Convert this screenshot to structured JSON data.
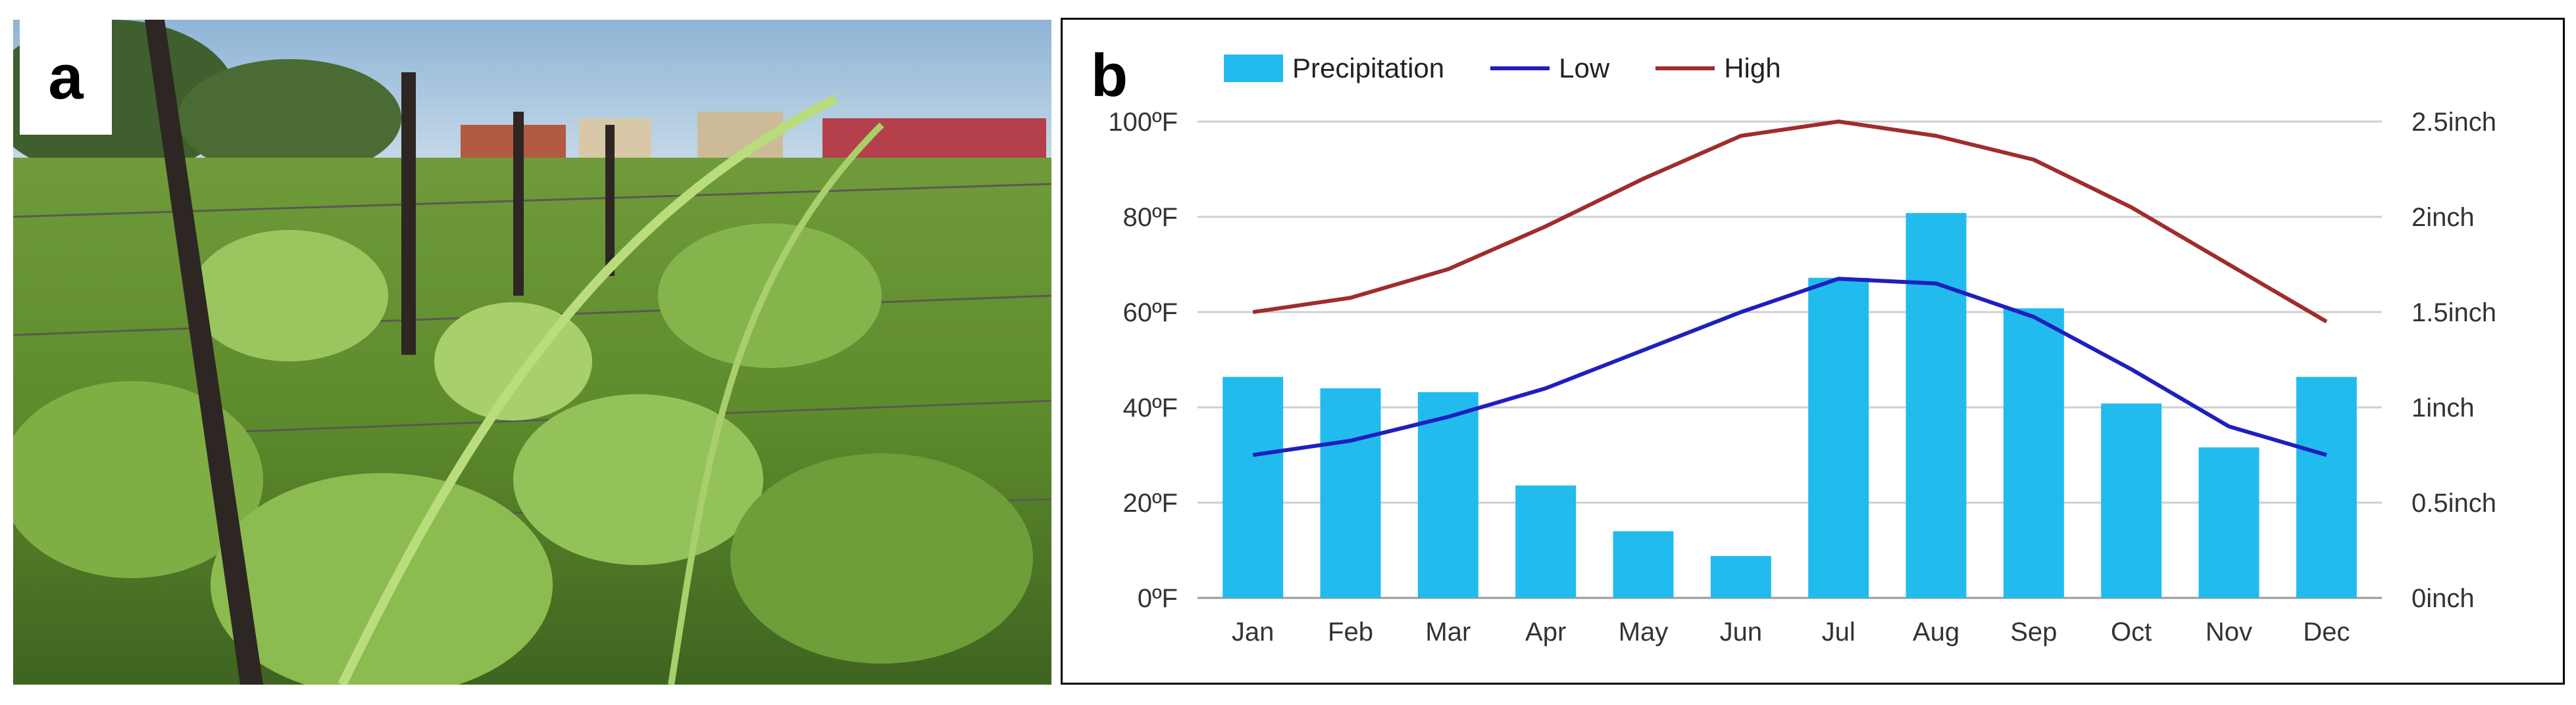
{
  "panel_labels": {
    "a": "a",
    "b": "b"
  },
  "photo": {
    "subject": "vineyard-photo"
  },
  "chart_data": {
    "type": "bar",
    "categories": [
      "Jan",
      "Feb",
      "Mar",
      "Apr",
      "May",
      "Jun",
      "Jul",
      "Aug",
      "Sep",
      "Oct",
      "Nov",
      "Dec"
    ],
    "series": [
      {
        "name": "Precipitation",
        "type": "bar",
        "axis": "right",
        "color": "#22bbee",
        "values": [
          1.16,
          1.1,
          1.08,
          0.59,
          0.35,
          0.22,
          1.68,
          2.02,
          1.52,
          1.02,
          0.79,
          1.16
        ]
      },
      {
        "name": "Low",
        "type": "line",
        "axis": "left",
        "color": "#1f1fbf",
        "values": [
          30,
          33,
          38,
          44,
          52,
          60,
          67,
          66,
          59,
          48,
          36,
          30
        ]
      },
      {
        "name": "High",
        "type": "line",
        "axis": "left",
        "color": "#a02c2c",
        "values": [
          60,
          63,
          69,
          78,
          88,
          97,
          100,
          97,
          92,
          82,
          70,
          58
        ]
      }
    ],
    "y_left": {
      "ylim": [
        0,
        100
      ],
      "ticks": [
        "0ºF",
        "20ºF",
        "40ºF",
        "60ºF",
        "80ºF",
        "100ºF"
      ],
      "tick_values": [
        0,
        20,
        40,
        60,
        80,
        100
      ]
    },
    "y_right": {
      "ylim": [
        0,
        2.5
      ],
      "ticks": [
        "0inch",
        "0.5inch",
        "1inch",
        "1.5inch",
        "2inch",
        "2.5inch"
      ],
      "tick_values": [
        0,
        0.5,
        1,
        1.5,
        2,
        2.5
      ]
    },
    "legend": [
      "Precipitation",
      "Low",
      "High"
    ],
    "legend_position": "top-left",
    "grid": true,
    "title": "",
    "xlabel": "",
    "ylabel": ""
  }
}
